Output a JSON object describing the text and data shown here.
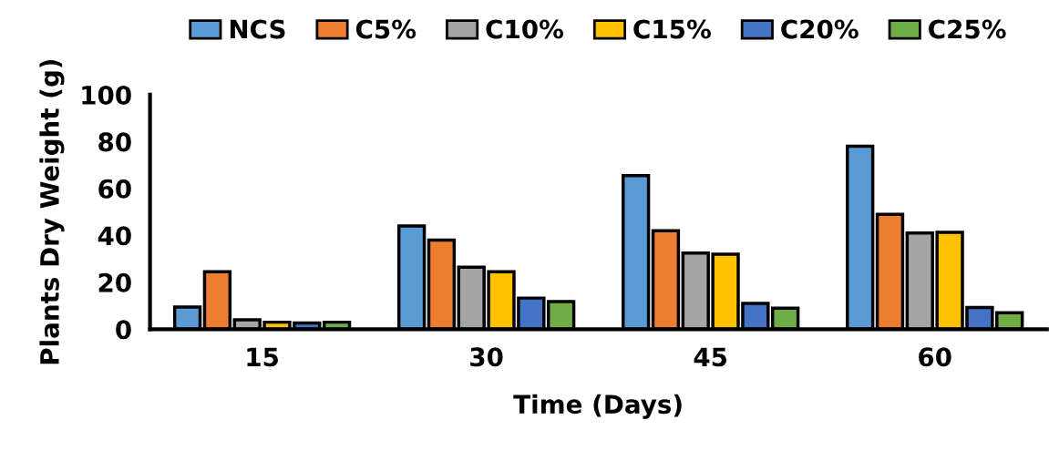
{
  "chart_data": {
    "type": "bar",
    "xlabel": "Time (Days)",
    "ylabel": "Plants Dry Weight (g)",
    "categories": [
      "15",
      "30",
      "45",
      "60"
    ],
    "series": [
      {
        "name": "NCS",
        "color": "#5b9bd5",
        "values": [
          9.5,
          44,
          65.5,
          78
        ]
      },
      {
        "name": "C5%",
        "color": "#ed7d31",
        "values": [
          24.5,
          38,
          42,
          49
        ]
      },
      {
        "name": "C10%",
        "color": "#a5a5a5",
        "values": [
          4,
          26.5,
          32.5,
          41
        ]
      },
      {
        "name": "C15%",
        "color": "#ffc000",
        "values": [
          3,
          24.5,
          32,
          41.3
        ]
      },
      {
        "name": "C20%",
        "color": "#4472c4",
        "values": [
          2.7,
          13.3,
          11,
          9.3
        ]
      },
      {
        "name": "C25%",
        "color": "#70ad47",
        "values": [
          3,
          11.8,
          9,
          7
        ]
      }
    ],
    "ylim": [
      0,
      100
    ],
    "yticks": [
      0,
      20,
      40,
      60,
      80,
      100
    ],
    "legend": "top",
    "grid": false
  }
}
